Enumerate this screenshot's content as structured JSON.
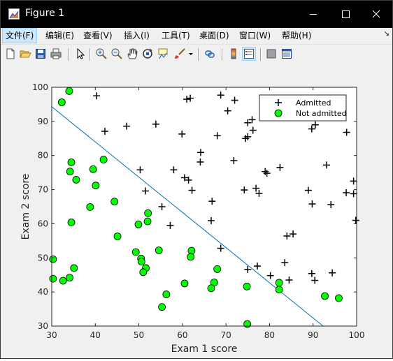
{
  "window": {
    "title": "Figure 1",
    "icon": "matlab-figure-icon"
  },
  "menubar": {
    "items": [
      "文件(F)",
      "编辑(E)",
      "查看(V)",
      "插入(I)",
      "工具(T)",
      "桌面(D)",
      "窗口(W)",
      "帮助(H)"
    ],
    "active": "文件(F)"
  },
  "toolbar": {
    "buttons": [
      "new-figure",
      "open-file",
      "save",
      "print",
      "edit-plot",
      "zoom-in",
      "zoom-out",
      "pan",
      "rotate-3d",
      "data-cursor",
      "brush",
      "link-plot",
      "insert-colorbar",
      "insert-legend",
      "hide-plot-tools",
      "show-plot-tools"
    ],
    "pressed": "insert-legend"
  },
  "colors": {
    "admitted_marker": "#000000",
    "not_admitted_fill": "#00ff00",
    "boundary_line": "#0072bd"
  },
  "chart_data": {
    "type": "scatter",
    "title": "",
    "xlabel": "Exam 1 score",
    "ylabel": "Exam 2 score",
    "xlim": [
      30,
      100
    ],
    "ylim": [
      30,
      100
    ],
    "xticks": [
      30,
      40,
      50,
      60,
      70,
      80,
      90,
      100
    ],
    "yticks": [
      30,
      40,
      50,
      60,
      70,
      80,
      90,
      100
    ],
    "grid": false,
    "legend": {
      "placement": "top-right",
      "entries": [
        "Admitted",
        "Not admitted"
      ]
    },
    "series": [
      {
        "name": "Admitted",
        "marker": "+",
        "points": [
          [
            40.3,
            97.5
          ],
          [
            61.0,
            96.5
          ],
          [
            61.8,
            96.8
          ],
          [
            68.8,
            97.7
          ],
          [
            72.0,
            96.2
          ],
          [
            76.0,
            90.5
          ],
          [
            75.0,
            89.6
          ],
          [
            90.5,
            89.0
          ],
          [
            89.7,
            87.8
          ],
          [
            97.7,
            86.8
          ],
          [
            47.2,
            88.6
          ],
          [
            53.9,
            89.2
          ],
          [
            42.2,
            87.1
          ],
          [
            59.9,
            86.3
          ],
          [
            68.0,
            85.8
          ],
          [
            74.5,
            85.0
          ],
          [
            75.0,
            85.5
          ],
          [
            76.2,
            87.4
          ],
          [
            70.4,
            93.1
          ],
          [
            64.2,
            80.9
          ],
          [
            71.8,
            78.5
          ],
          [
            64.1,
            78.1
          ],
          [
            82.4,
            76.5
          ],
          [
            79.0,
            75.3
          ],
          [
            79.4,
            74.8
          ],
          [
            93.1,
            77.2
          ],
          [
            58.0,
            75.8
          ],
          [
            60.5,
            73.5
          ],
          [
            61.4,
            72.8
          ],
          [
            50.3,
            75.8
          ],
          [
            99.3,
            72.5
          ],
          [
            51.5,
            69.6
          ],
          [
            62.2,
            69.8
          ],
          [
            74.2,
            69.9
          ],
          [
            76.9,
            70.4
          ],
          [
            77.6,
            68.9
          ],
          [
            88.9,
            69.8
          ],
          [
            97.6,
            69.1
          ],
          [
            99.3,
            68.8
          ],
          [
            66.8,
            66.6
          ],
          [
            89.8,
            65.8
          ],
          [
            94.1,
            65.6
          ],
          [
            55.3,
            65.0
          ],
          [
            57.2,
            59.5
          ],
          [
            66.6,
            60.9
          ],
          [
            99.8,
            61.0
          ],
          [
            85.4,
            57.0
          ],
          [
            84.0,
            56.4
          ],
          [
            68.8,
            52.8
          ],
          [
            83.5,
            48.6
          ],
          [
            77.2,
            47.6
          ],
          [
            75.0,
            46.6
          ],
          [
            80.2,
            44.8
          ],
          [
            84.5,
            43.5
          ],
          [
            89.7,
            45.4
          ],
          [
            90.4,
            43.4
          ],
          [
            94.4,
            45.6
          ]
        ]
      },
      {
        "name": "Not admitted",
        "marker": "o",
        "points": [
          [
            34.0,
            98.9
          ],
          [
            32.3,
            95.6
          ],
          [
            41.9,
            78.8
          ],
          [
            34.5,
            78.0
          ],
          [
            39.5,
            76.0
          ],
          [
            34.2,
            75.3
          ],
          [
            35.6,
            72.9
          ],
          [
            40.1,
            71.2
          ],
          [
            44.4,
            66.5
          ],
          [
            38.8,
            64.9
          ],
          [
            52.1,
            63.1
          ],
          [
            52.0,
            60.7
          ],
          [
            34.5,
            60.4
          ],
          [
            49.9,
            59.8
          ],
          [
            45.1,
            56.3
          ],
          [
            30.3,
            49.6
          ],
          [
            49.3,
            51.7
          ],
          [
            54.6,
            52.2
          ],
          [
            62.1,
            52.1
          ],
          [
            61.9,
            50.3
          ],
          [
            50.5,
            49.8
          ],
          [
            50.6,
            48.9
          ],
          [
            51.6,
            47.0
          ],
          [
            51.0,
            45.8
          ],
          [
            35.1,
            47.0
          ],
          [
            30.3,
            43.9
          ],
          [
            32.6,
            43.3
          ],
          [
            34.1,
            44.2
          ],
          [
            60.5,
            42.5
          ],
          [
            67.3,
            42.8
          ],
          [
            68.0,
            46.7
          ],
          [
            66.6,
            41.1
          ],
          [
            74.8,
            41.6
          ],
          [
            82.2,
            42.7
          ],
          [
            82.2,
            40.7
          ],
          [
            56.3,
            39.3
          ],
          [
            55.3,
            35.6
          ],
          [
            92.7,
            38.8
          ],
          [
            95.9,
            38.2
          ],
          [
            74.9,
            30.6
          ]
        ]
      },
      {
        "name": "",
        "type": "line",
        "points": [
          [
            30.0,
            94.3
          ],
          [
            92.3,
            30.0
          ]
        ]
      }
    ]
  }
}
